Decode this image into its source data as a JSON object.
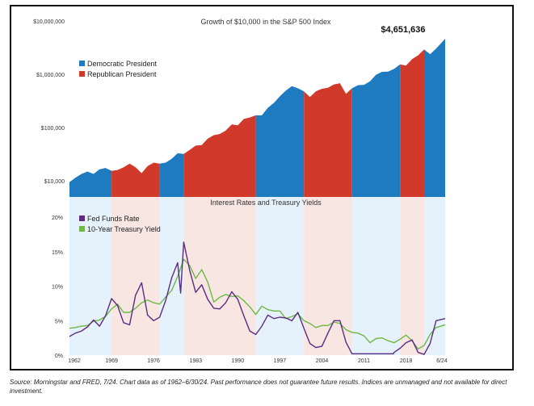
{
  "colors": {
    "democratic": "#1f7bbf",
    "republican": "#d13a2b",
    "dem_shade": "#e6f2fb",
    "rep_shade": "#f8e6e2",
    "fed": "#5b2c83",
    "treasury": "#6fb845"
  },
  "source_note": "Source: Morningstar and FRED, 7/24.  Chart data as of 1962–6/30/24. Past performance does not guarantee future results. Indices are unmanaged and not available for direct investment.",
  "chart_data": [
    {
      "type": "area",
      "title": "Growth of $10,000 in the S&P 500 Index",
      "scale": "log",
      "ylim": [
        5000,
        10000000
      ],
      "yticks": [
        10000,
        100000,
        1000000,
        10000000
      ],
      "ytick_labels": [
        "$10,000",
        "$100,000",
        "$1,000,000",
        "$10,000,000"
      ],
      "end_label": "$4,651,636",
      "legend": [
        "Democratic President",
        "Republican President"
      ],
      "legend_position": "top-left",
      "x": [
        1962,
        1963,
        1964,
        1965,
        1966,
        1967,
        1968,
        1969,
        1970,
        1971,
        1972,
        1973,
        1974,
        1975,
        1976,
        1977,
        1978,
        1979,
        1980,
        1981,
        1982,
        1983,
        1984,
        1985,
        1986,
        1987,
        1988,
        1989,
        1990,
        1991,
        1992,
        1993,
        1994,
        1995,
        1996,
        1997,
        1998,
        1999,
        2000,
        2001,
        2002,
        2003,
        2004,
        2005,
        2006,
        2007,
        2008,
        2009,
        2010,
        2011,
        2012,
        2013,
        2014,
        2015,
        2016,
        2017,
        2018,
        2019,
        2020,
        2021,
        2022,
        2023,
        2024.5
      ],
      "values": [
        9500,
        11500,
        13500,
        15000,
        13500,
        16500,
        17500,
        15500,
        16000,
        18000,
        21000,
        18000,
        14000,
        19000,
        22000,
        21000,
        22000,
        26000,
        33000,
        32000,
        38000,
        46000,
        47000,
        62000,
        72000,
        76000,
        88000,
        115000,
        110000,
        145000,
        155000,
        170000,
        170000,
        235000,
        290000,
        385000,
        495000,
        600000,
        545000,
        480000,
        375000,
        480000,
        535000,
        560000,
        645000,
        680000,
        430000,
        545000,
        625000,
        635000,
        740000,
        980000,
        1110000,
        1120000,
        1260000,
        1530000,
        1460000,
        1920000,
        2270000,
        2920000,
        2390000,
        3020000,
        4651636
      ],
      "presidential_terms": [
        {
          "party": "D",
          "start": 1962,
          "end": 1969
        },
        {
          "party": "R",
          "start": 1969,
          "end": 1977
        },
        {
          "party": "D",
          "start": 1977,
          "end": 1981
        },
        {
          "party": "R",
          "start": 1981,
          "end": 1993
        },
        {
          "party": "D",
          "start": 1993,
          "end": 2001
        },
        {
          "party": "R",
          "start": 2001,
          "end": 2009
        },
        {
          "party": "D",
          "start": 2009,
          "end": 2017
        },
        {
          "party": "R",
          "start": 2017,
          "end": 2021
        },
        {
          "party": "D",
          "start": 2021,
          "end": 2024.5
        }
      ]
    },
    {
      "type": "line",
      "title": "Interest Rates and Treasury Yields",
      "ylim": [
        0,
        22
      ],
      "yticks": [
        0,
        5,
        10,
        15,
        20
      ],
      "ytick_labels": [
        "0%",
        "5%",
        "10%",
        "15%",
        "20%"
      ],
      "xticks": [
        1962,
        1969,
        1976,
        1983,
        1990,
        1997,
        2004,
        2011,
        2018,
        2024.5
      ],
      "xtick_labels": [
        "1962",
        "1969",
        "1976",
        "1983",
        "1990",
        "1997",
        "2004",
        "2011",
        "2018",
        "6/24"
      ],
      "legend": [
        "Fed Funds Rate",
        "10-Year Treasury Yield"
      ],
      "legend_position": "top-left",
      "series": [
        {
          "name": "Fed Funds Rate",
          "x": [
            1962,
            1963,
            1964,
            1965,
            1966,
            1967,
            1968,
            1969,
            1970,
            1971,
            1972,
            1973,
            1974,
            1975,
            1976,
            1977,
            1978,
            1979,
            1980,
            1980.5,
            1981,
            1982,
            1983,
            1984,
            1985,
            1986,
            1987,
            1988,
            1989,
            1990,
            1991,
            1992,
            1993,
            1994,
            1995,
            1996,
            1997,
            1998,
            1999,
            2000,
            2001,
            2002,
            2003,
            2004,
            2005,
            2006,
            2007,
            2008,
            2009,
            2015.9,
            2016,
            2017,
            2018,
            2019,
            2020,
            2021,
            2022,
            2023,
            2024.5
          ],
          "values": [
            2.7,
            3.2,
            3.5,
            4.1,
            5.1,
            4.2,
            5.7,
            8.2,
            7.2,
            4.7,
            4.4,
            8.7,
            10.5,
            5.8,
            5.0,
            5.5,
            7.9,
            11.2,
            13.4,
            9.0,
            16.4,
            12.3,
            9.1,
            10.2,
            8.1,
            6.8,
            6.7,
            7.6,
            9.2,
            8.1,
            5.7,
            3.5,
            3.0,
            4.2,
            5.8,
            5.3,
            5.5,
            5.4,
            5.0,
            6.2,
            3.9,
            1.7,
            1.1,
            1.3,
            3.2,
            5.0,
            5.0,
            1.9,
            0.2,
            0.2,
            0.4,
            1.0,
            1.8,
            2.2,
            0.4,
            0.1,
            1.7,
            5.0,
            5.3
          ]
        },
        {
          "name": "10-Year Treasury Yield",
          "x": [
            1962,
            1963,
            1964,
            1965,
            1966,
            1967,
            1968,
            1969,
            1970,
            1971,
            1972,
            1973,
            1974,
            1975,
            1976,
            1977,
            1978,
            1979,
            1980,
            1981,
            1982,
            1983,
            1984,
            1985,
            1986,
            1987,
            1988,
            1989,
            1990,
            1991,
            1992,
            1993,
            1994,
            1995,
            1996,
            1997,
            1998,
            1999,
            2000,
            2001,
            2002,
            2003,
            2004,
            2005,
            2006,
            2007,
            2008,
            2009,
            2010,
            2011,
            2012,
            2013,
            2014,
            2015,
            2016,
            2017,
            2018,
            2019,
            2020,
            2021,
            2022,
            2023,
            2024.5
          ],
          "values": [
            3.9,
            4.0,
            4.2,
            4.3,
            4.9,
            5.1,
            5.6,
            6.7,
            7.4,
            6.2,
            6.2,
            6.8,
            7.6,
            8.0,
            7.6,
            7.4,
            8.4,
            9.4,
            11.4,
            13.9,
            13.0,
            11.1,
            12.4,
            10.6,
            7.7,
            8.4,
            8.8,
            8.5,
            8.6,
            7.9,
            7.0,
            5.9,
            7.1,
            6.6,
            6.4,
            6.4,
            5.3,
            5.6,
            6.0,
            5.0,
            4.6,
            4.0,
            4.3,
            4.3,
            4.8,
            4.6,
            3.7,
            3.3,
            3.2,
            2.8,
            1.8,
            2.4,
            2.5,
            2.1,
            1.8,
            2.3,
            2.9,
            2.1,
            0.9,
            1.4,
            3.0,
            4.0,
            4.4
          ]
        }
      ]
    }
  ]
}
